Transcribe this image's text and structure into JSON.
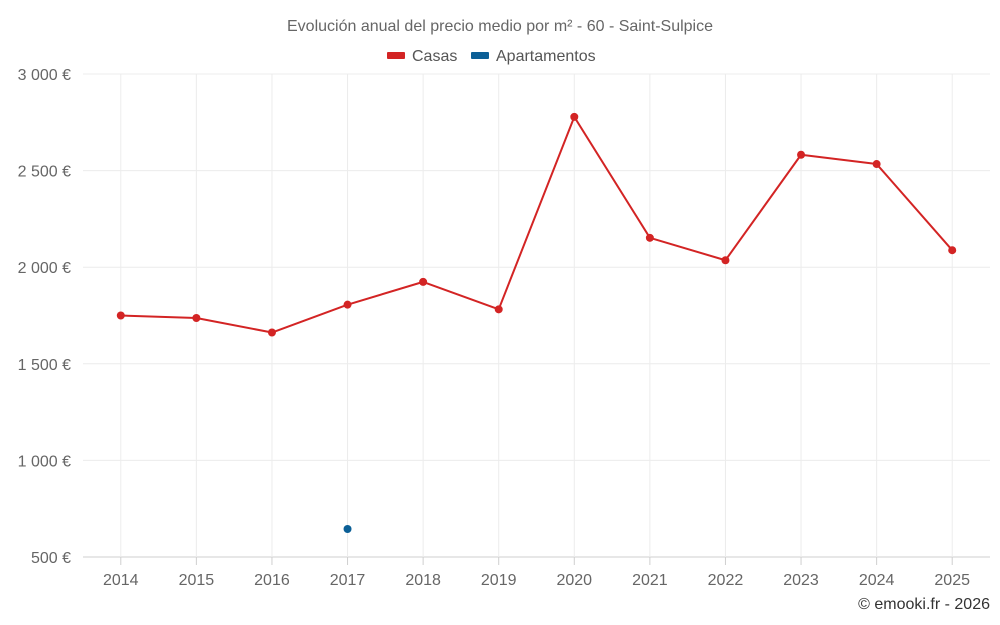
{
  "chart_data": {
    "type": "line",
    "title": "Evolución anual del precio medio por m² - 60 - Saint-Sulpice",
    "categories": [
      "2014",
      "2015",
      "2016",
      "2017",
      "2018",
      "2019",
      "2020",
      "2021",
      "2022",
      "2023",
      "2024",
      "2025"
    ],
    "series": [
      {
        "name": "Casas",
        "color": "#d32424",
        "values": [
          1750,
          1737,
          1662,
          1806,
          1924,
          1782,
          2778,
          2152,
          2036,
          2582,
          2534,
          2088
        ]
      },
      {
        "name": "Apartamentos",
        "color": "#0b5f96",
        "values": [
          null,
          null,
          null,
          645,
          null,
          null,
          null,
          null,
          null,
          null,
          null,
          null
        ]
      }
    ],
    "ylim": [
      500,
      3000
    ],
    "yticks": [
      500,
      1000,
      1500,
      2000,
      2500,
      3000
    ],
    "ytick_labels": [
      "500 €",
      "1 000 €",
      "1 500 €",
      "2 000 €",
      "2 500 €",
      "3 000 €"
    ],
    "xlabel": "",
    "ylabel": "",
    "grid": true,
    "legend": "top-center"
  },
  "credit": "© emooki.fr - 2026"
}
